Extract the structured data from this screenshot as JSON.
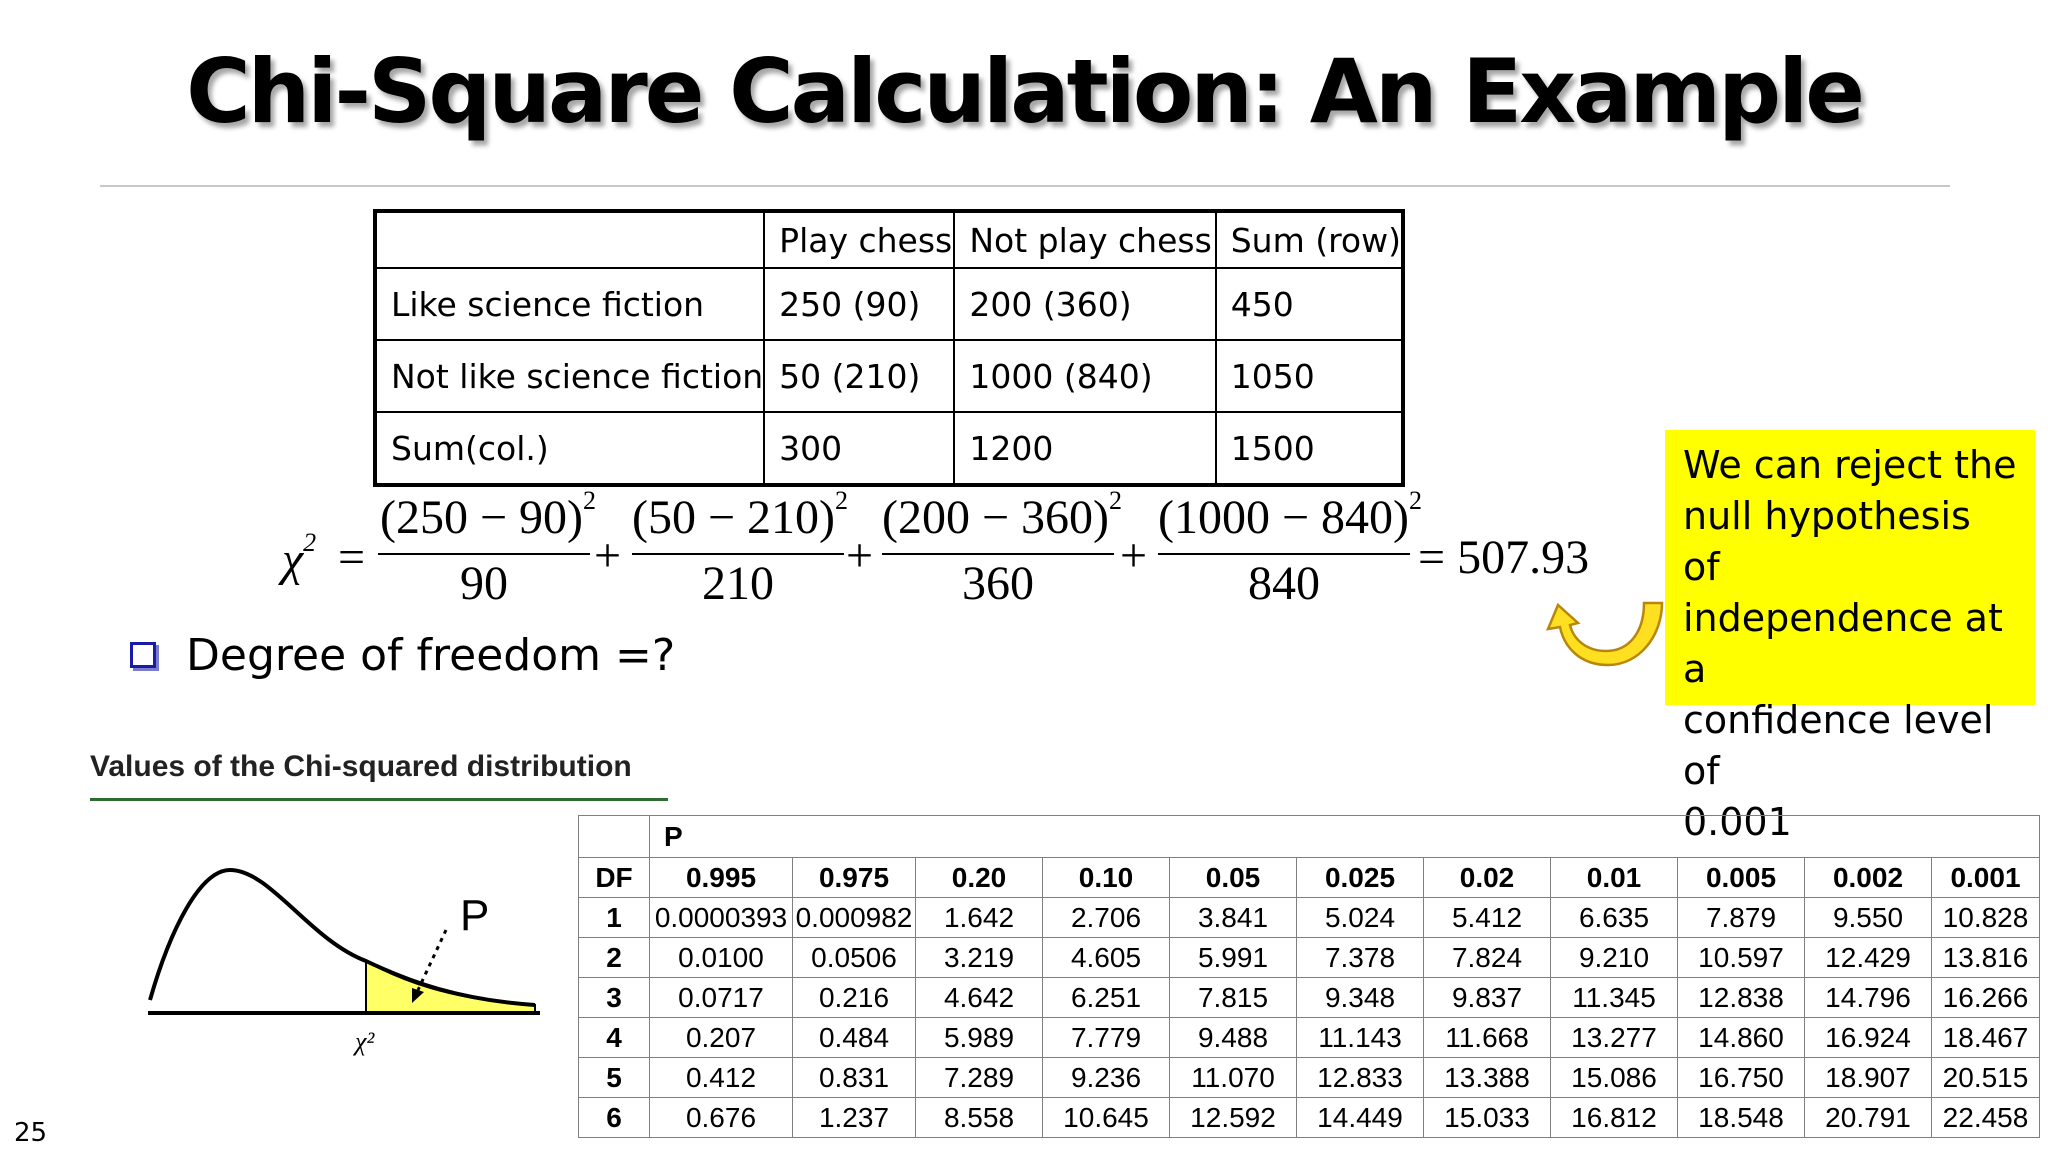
{
  "slide": {
    "title": "Chi-Square Calculation: An Example",
    "page_number": "25"
  },
  "contingency": {
    "headers": [
      "",
      "Play chess",
      "Not play chess",
      "Sum (row)"
    ],
    "rows": [
      [
        "Like science fiction",
        "250 (90)",
        "200 (360)",
        "450"
      ],
      [
        "Not like science fiction",
        "50 (210)",
        "1000 (840)",
        "1050"
      ],
      [
        "Sum(col.)",
        "300",
        "1200",
        "1500"
      ]
    ]
  },
  "formula": {
    "lhs": "χ",
    "lhs_exp": "2",
    "equals": "=",
    "plus": "+",
    "terms": [
      {
        "num": "(250 − 90)",
        "exp": "2",
        "den": "90"
      },
      {
        "num": "(50 − 210)",
        "exp": "2",
        "den": "210"
      },
      {
        "num": "(200 − 360)",
        "exp": "2",
        "den": "360"
      },
      {
        "num": "(1000 − 840)",
        "exp": "2",
        "den": "840"
      }
    ],
    "result": "= 507.93"
  },
  "bullet": {
    "text": "Degree of freedom =?"
  },
  "callout": {
    "lines": [
      "We can reject the",
      "null hypothesis of",
      "independence at a",
      "confidence level of",
      "0.001"
    ],
    "background": "#ffff00"
  },
  "distribution": {
    "heading": "Values of the Chi-squared distribution",
    "figure_p_label": "P",
    "figure_x_label": "χ²",
    "p_header": "P",
    "df_header": "DF",
    "p_values": [
      "0.995",
      "0.975",
      "0.20",
      "0.10",
      "0.05",
      "0.025",
      "0.02",
      "0.01",
      "0.005",
      "0.002",
      "0.001"
    ],
    "rows": [
      {
        "df": "1",
        "vals": [
          "0.0000393",
          "0.000982",
          "1.642",
          "2.706",
          "3.841",
          "5.024",
          "5.412",
          "6.635",
          "7.879",
          "9.550",
          "10.828"
        ]
      },
      {
        "df": "2",
        "vals": [
          "0.0100",
          "0.0506",
          "3.219",
          "4.605",
          "5.991",
          "7.378",
          "7.824",
          "9.210",
          "10.597",
          "12.429",
          "13.816"
        ]
      },
      {
        "df": "3",
        "vals": [
          "0.0717",
          "0.216",
          "4.642",
          "6.251",
          "7.815",
          "9.348",
          "9.837",
          "11.345",
          "12.838",
          "14.796",
          "16.266"
        ]
      },
      {
        "df": "4",
        "vals": [
          "0.207",
          "0.484",
          "5.989",
          "7.779",
          "9.488",
          "11.143",
          "11.668",
          "13.277",
          "14.860",
          "16.924",
          "18.467"
        ]
      },
      {
        "df": "5",
        "vals": [
          "0.412",
          "0.831",
          "7.289",
          "9.236",
          "11.070",
          "12.833",
          "13.388",
          "15.086",
          "16.750",
          "18.907",
          "20.515"
        ]
      },
      {
        "df": "6",
        "vals": [
          "0.676",
          "1.237",
          "8.558",
          "10.645",
          "12.592",
          "14.449",
          "15.033",
          "16.812",
          "18.548",
          "20.791",
          "22.458"
        ]
      }
    ]
  },
  "colors": {
    "callout_bg": "#ffff00",
    "arrow_fill": "#ffe020",
    "tail_fill": "#ffff66",
    "bullet": "#1a1aa8",
    "heading_rule": "#2e6b2e"
  }
}
